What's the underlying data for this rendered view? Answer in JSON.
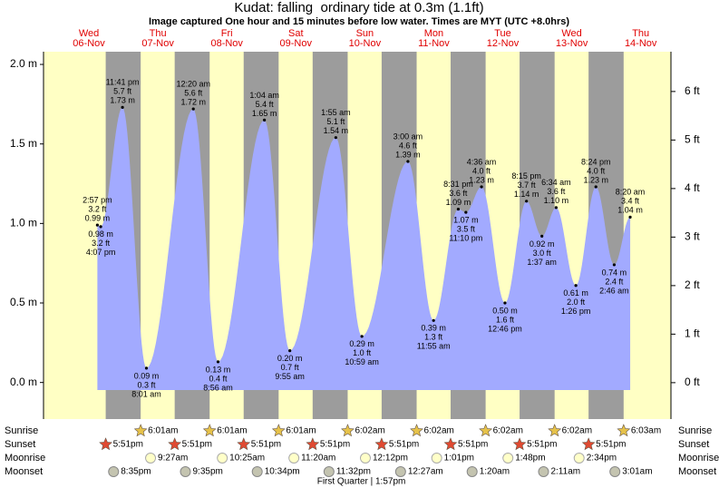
{
  "title": "Kudat: falling  ordinary tide at 0.3m (1.1ft)",
  "subtitle": "Image captured One hour and 15 minutes before low water. Times are MYT (UTC +8.0hrs)",
  "chart_data": {
    "type": "tide",
    "ylim": [
      -0.23,
      2.08
    ],
    "yticks": [
      {
        "value": 0,
        "label": "0.0 m"
      },
      {
        "value": 0.5,
        "label": "0.5 m"
      },
      {
        "value": 1,
        "label": "1.0 m"
      },
      {
        "value": 1.5,
        "label": "1.5 m"
      },
      {
        "value": 2,
        "label": "2.0 m"
      }
    ],
    "y2lim": [
      -0.75,
      6.82
    ],
    "y2ticks": [
      {
        "value": 0,
        "label": "0 ft"
      },
      {
        "value": 1,
        "label": "1 ft"
      },
      {
        "value": 2,
        "label": "2 ft"
      },
      {
        "value": 3,
        "label": "3 ft"
      },
      {
        "value": 4,
        "label": "4 ft"
      },
      {
        "value": 5,
        "label": "5 ft"
      },
      {
        "value": 6,
        "label": "6 ft"
      }
    ],
    "colors": {
      "water": "#a2aaff",
      "day": "#ffffc4",
      "night": "#9c9c9c",
      "date": "#e00000"
    },
    "row_labels": [
      "Sunrise",
      "Sunset",
      "Moonrise",
      "Moonset"
    ],
    "days": [
      {
        "weekday": "Wed",
        "date": "06-Nov",
        "events": [
          null,
          "5:51pm",
          null,
          "8:35pm"
        ],
        "tides": {
          "times": [
            "2:57 pm",
            "4:07 pm",
            "11:41 pm"
          ],
          "values": [
            0.99,
            0.98,
            1.73
          ],
          "value_labels": [
            "0.99 m",
            "0.98 m",
            "1.73 m"
          ],
          "ft_labels": [
            "3.2 ft",
            "3.2 ft",
            "5.7 ft"
          ]
        }
      },
      {
        "weekday": "Thu",
        "date": "07-Nov",
        "events": [
          "6:01am",
          "5:51pm",
          "9:27am",
          "9:35pm"
        ],
        "tides": {
          "times": [
            "8:01 am"
          ],
          "values": [
            0.09
          ],
          "value_labels": [
            "0.09 m"
          ],
          "ft_labels": [
            "0.3 ft"
          ]
        }
      },
      {
        "weekday": "Fri",
        "date": "08-Nov",
        "events": [
          "6:01am",
          "5:51pm",
          "10:25am",
          "10:34pm"
        ],
        "tides": {
          "times": [
            "12:20 am",
            "8:56 am"
          ],
          "values": [
            1.72,
            0.13
          ],
          "value_labels": [
            "1.72 m",
            "0.13 m"
          ],
          "ft_labels": [
            "5.6 ft",
            "0.4 ft"
          ]
        }
      },
      {
        "weekday": "Sat",
        "date": "09-Nov",
        "events": [
          "6:01am",
          "5:51pm",
          "11:20am",
          "11:32pm"
        ],
        "tides": {
          "times": [
            "1:04 am",
            "9:55 am"
          ],
          "values": [
            1.65,
            0.2
          ],
          "value_labels": [
            "1.65 m",
            "0.20 m"
          ],
          "ft_labels": [
            "5.4 ft",
            "0.7 ft"
          ]
        }
      },
      {
        "weekday": "Sun",
        "date": "10-Nov",
        "events": [
          "6:02am",
          "5:51pm",
          "12:12pm",
          null
        ],
        "phase": "First Quarter | 1:57pm",
        "tides": {
          "times": [
            "1:55 am",
            "10:59 am"
          ],
          "values": [
            1.54,
            0.29
          ],
          "value_labels": [
            "1.54 m",
            "0.29 m"
          ],
          "ft_labels": [
            "5.1 ft",
            "1.0 ft"
          ]
        }
      },
      {
        "weekday": "Mon",
        "date": "11-Nov",
        "events": [
          "6:02am",
          "5:51pm",
          "1:01pm",
          "12:27am"
        ],
        "tides": {
          "times": [
            "3:00 am",
            "11:55 am",
            "8:31 pm",
            "11:10 pm"
          ],
          "values": [
            1.39,
            0.39,
            1.09,
            1.07
          ],
          "value_labels": [
            "1.39 m",
            "0.39 m",
            "1.09 m",
            "1.07 m"
          ],
          "ft_labels": [
            "4.6 ft",
            "1.3 ft",
            "3.6 ft",
            "3.5 ft"
          ]
        }
      },
      {
        "weekday": "Tue",
        "date": "12-Nov",
        "events": [
          "6:02am",
          "5:51pm",
          "1:48pm",
          "1:20am"
        ],
        "tides": {
          "times": [
            "4:36 am",
            "12:46 pm",
            "8:15 pm"
          ],
          "values": [
            1.23,
            0.5,
            1.14
          ],
          "value_labels": [
            "1.23 m",
            "0.50 m",
            "1.14 m"
          ],
          "ft_labels": [
            "4.0 ft",
            "1.6 ft",
            "3.7 ft"
          ]
        }
      },
      {
        "weekday": "Wed",
        "date": "13-Nov",
        "events": [
          "6:02am",
          "5:51pm",
          "2:34pm",
          "2:11am"
        ],
        "tides": {
          "times": [
            "1:37 am",
            "6:34 am",
            "1:26 pm",
            "8:24 pm"
          ],
          "values": [
            0.92,
            1.1,
            0.61,
            1.23
          ],
          "value_labels": [
            "0.92 m",
            "1.10 m",
            "0.61 m",
            "1.23 m"
          ],
          "ft_labels": [
            "3.0 ft",
            "3.6 ft",
            "2.0 ft",
            "4.0 ft"
          ]
        }
      },
      {
        "weekday": "Thu",
        "date": "14-Nov",
        "events": [
          "6:03am",
          null,
          null,
          "3:01am"
        ],
        "tides": {
          "times": [
            "2:46 am",
            "8:20 am"
          ],
          "values": [
            0.74,
            1.04
          ],
          "value_labels": [
            "0.74 m",
            "1.04 m"
          ],
          "ft_labels": [
            "2.4 ft",
            "3.4 ft"
          ]
        }
      }
    ]
  }
}
